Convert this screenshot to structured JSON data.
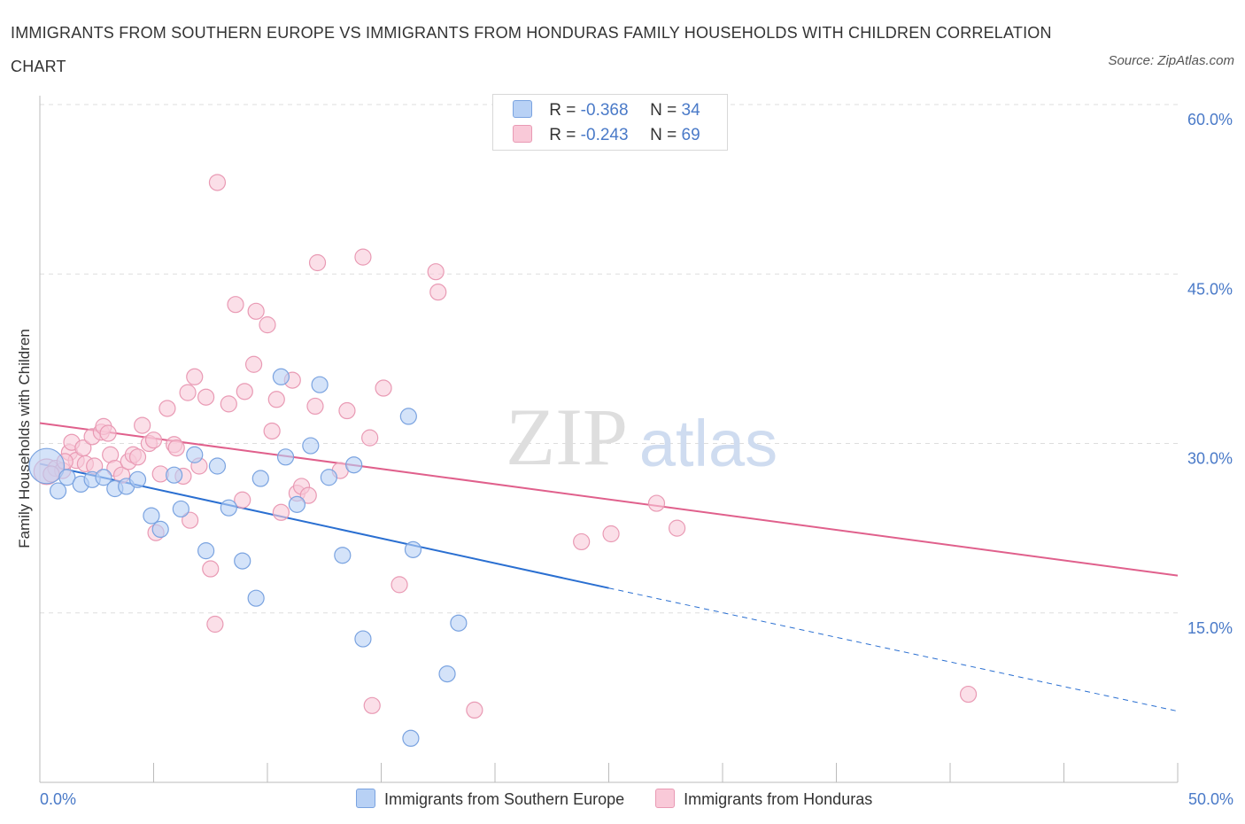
{
  "header": {
    "title": "IMMIGRANTS FROM SOUTHERN EUROPE VS IMMIGRANTS FROM HONDURAS FAMILY HOUSEHOLDS WITH CHILDREN CORRELATION CHART",
    "source": "Source: ZipAtlas.com"
  },
  "watermark": {
    "zip": "ZIP",
    "atlas": "atlas"
  },
  "legend_stats": [
    {
      "r_label": "R =",
      "r_value": "-0.368",
      "n_label": "N =",
      "n_value": "34",
      "color": "#b8d1f5",
      "border": "#7aa3e0"
    },
    {
      "r_label": "R =",
      "r_value": "-0.243",
      "n_label": "N =",
      "n_value": "69",
      "color": "#f9c9d8",
      "border": "#e99ab4"
    }
  ],
  "colors": {
    "blue_fill": "#b8d1f5",
    "blue_stroke": "#7aa3e0",
    "blue_line": "#2a6fd1",
    "pink_fill": "#f9c9d8",
    "pink_stroke": "#e99ab4",
    "pink_line": "#e0608c",
    "tick_text": "#4a7ac8",
    "grid": "#dddddd"
  },
  "chart_data": {
    "type": "scatter",
    "title": "IMMIGRANTS FROM SOUTHERN EUROPE VS IMMIGRANTS FROM HONDURAS FAMILY HOUSEHOLDS WITH CHILDREN CORRELATION CHART",
    "xlabel": "",
    "ylabel": "Family Households with Children",
    "xlim": [
      0,
      50
    ],
    "ylim": [
      0,
      60
    ],
    "x_tick_labels": [
      "0.0%",
      "50.0%"
    ],
    "y_ticks": [
      15,
      30,
      45,
      60
    ],
    "y_tick_labels": [
      "15.0%",
      "30.0%",
      "45.0%",
      "60.0%"
    ],
    "grid": true,
    "legend_position": "bottom",
    "series": [
      {
        "name": "Immigrants from Southern Europe",
        "color": "#b8d1f5",
        "points": [
          [
            0.3,
            28.0,
            2.2
          ],
          [
            0.8,
            25.8,
            1
          ],
          [
            1.2,
            27.0,
            1
          ],
          [
            1.8,
            26.4,
            1
          ],
          [
            2.3,
            26.8,
            1
          ],
          [
            2.8,
            27.0,
            1
          ],
          [
            3.3,
            26.0,
            1
          ],
          [
            3.8,
            26.2,
            1
          ],
          [
            4.3,
            26.8,
            1
          ],
          [
            4.9,
            23.6,
            1
          ],
          [
            5.3,
            22.4,
            1
          ],
          [
            5.9,
            27.2,
            1
          ],
          [
            6.2,
            24.2,
            1
          ],
          [
            6.8,
            29.0,
            1
          ],
          [
            7.3,
            20.5,
            1
          ],
          [
            7.8,
            28.0,
            1
          ],
          [
            8.3,
            24.3,
            1
          ],
          [
            8.9,
            19.6,
            1
          ],
          [
            9.5,
            16.3,
            1
          ],
          [
            9.7,
            26.9,
            1
          ],
          [
            10.6,
            35.9,
            1
          ],
          [
            10.8,
            28.8,
            1
          ],
          [
            11.3,
            24.6,
            1
          ],
          [
            11.9,
            29.8,
            1
          ],
          [
            12.3,
            35.2,
            1
          ],
          [
            12.7,
            27.0,
            1
          ],
          [
            13.3,
            20.1,
            1
          ],
          [
            13.8,
            28.1,
            1
          ],
          [
            14.2,
            12.7,
            1
          ],
          [
            16.4,
            20.6,
            1
          ],
          [
            16.2,
            32.4,
            1
          ],
          [
            17.9,
            9.6,
            1
          ],
          [
            18.4,
            14.1,
            1
          ],
          [
            16.3,
            3.9,
            1
          ]
        ]
      },
      {
        "name": "Immigrants from Honduras",
        "color": "#f9c9d8",
        "points": [
          [
            0.3,
            27.5,
            1.6
          ],
          [
            0.7,
            27.8,
            1
          ],
          [
            1.0,
            27.6,
            1
          ],
          [
            1.3,
            29.2,
            1
          ],
          [
            1.4,
            30.1,
            1
          ],
          [
            1.6,
            28.5,
            1
          ],
          [
            1.9,
            29.6,
            1
          ],
          [
            2.0,
            28.2,
            1
          ],
          [
            2.3,
            30.6,
            1
          ],
          [
            2.4,
            28.0,
            1
          ],
          [
            2.7,
            31.0,
            1
          ],
          [
            2.8,
            31.5,
            1
          ],
          [
            3.1,
            29.0,
            1
          ],
          [
            3.3,
            27.8,
            1
          ],
          [
            3.6,
            27.2,
            1
          ],
          [
            3.9,
            28.4,
            1
          ],
          [
            4.1,
            29.0,
            1
          ],
          [
            4.3,
            28.8,
            1
          ],
          [
            4.5,
            31.6,
            1
          ],
          [
            4.8,
            30.0,
            1
          ],
          [
            5.0,
            30.3,
            1
          ],
          [
            5.1,
            22.1,
            1
          ],
          [
            5.3,
            27.3,
            1
          ],
          [
            5.6,
            33.1,
            1
          ],
          [
            5.9,
            29.9,
            1
          ],
          [
            6.0,
            29.6,
            1
          ],
          [
            6.3,
            27.1,
            1
          ],
          [
            6.5,
            34.5,
            1
          ],
          [
            6.6,
            23.2,
            1
          ],
          [
            6.8,
            35.9,
            1
          ],
          [
            7.0,
            28.0,
            1
          ],
          [
            7.3,
            34.1,
            1
          ],
          [
            7.5,
            18.9,
            1
          ],
          [
            7.7,
            14.0,
            1
          ],
          [
            7.8,
            53.1,
            1
          ],
          [
            8.3,
            33.5,
            1
          ],
          [
            8.6,
            42.3,
            1
          ],
          [
            8.9,
            25.0,
            1
          ],
          [
            9.0,
            34.6,
            1
          ],
          [
            9.4,
            37.0,
            1
          ],
          [
            9.5,
            41.7,
            1
          ],
          [
            10.0,
            40.5,
            1
          ],
          [
            10.2,
            31.1,
            1
          ],
          [
            10.4,
            33.9,
            1
          ],
          [
            10.6,
            23.9,
            1
          ],
          [
            11.1,
            35.6,
            1
          ],
          [
            11.3,
            25.6,
            1
          ],
          [
            11.5,
            26.2,
            1
          ],
          [
            11.8,
            25.4,
            1
          ],
          [
            12.1,
            33.3,
            1
          ],
          [
            12.2,
            46.0,
            1
          ],
          [
            13.2,
            27.6,
            1
          ],
          [
            13.5,
            32.9,
            1
          ],
          [
            14.2,
            46.5,
            1
          ],
          [
            14.5,
            30.5,
            1
          ],
          [
            15.1,
            34.9,
            1
          ],
          [
            14.6,
            6.8,
            1
          ],
          [
            15.8,
            17.5,
            1
          ],
          [
            17.4,
            45.2,
            1
          ],
          [
            17.5,
            43.4,
            1
          ],
          [
            19.1,
            6.4,
            1
          ],
          [
            23.8,
            21.3,
            1
          ],
          [
            25.1,
            22.0,
            1
          ],
          [
            27.1,
            24.7,
            1
          ],
          [
            28.0,
            22.5,
            1
          ],
          [
            40.8,
            7.8,
            1
          ],
          [
            0.5,
            27.3,
            1
          ],
          [
            1.1,
            28.4,
            1
          ],
          [
            3.0,
            30.9,
            1
          ]
        ]
      }
    ],
    "trendlines": [
      {
        "series": "Immigrants from Southern Europe",
        "x": [
          0,
          25
        ],
        "y": [
          28.2,
          17.2
        ],
        "dashed_extension": [
          25,
          50
        ],
        "dashed_y": [
          17.2,
          6.3
        ]
      },
      {
        "series": "Immigrants from Honduras",
        "x": [
          0,
          50
        ],
        "y": [
          31.8,
          18.3
        ]
      }
    ]
  }
}
